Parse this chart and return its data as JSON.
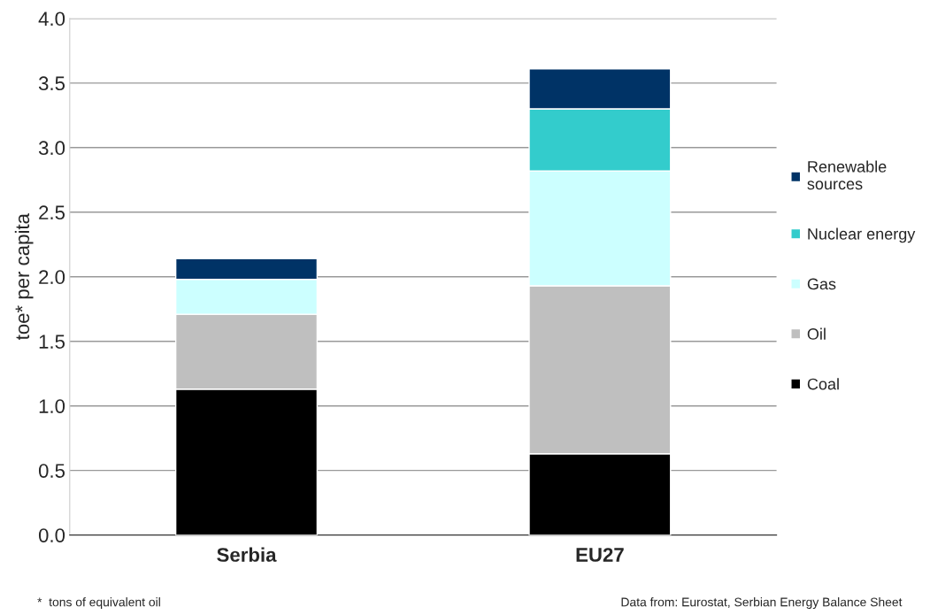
{
  "chart_data": {
    "type": "bar",
    "ylabel": "toe* per capita",
    "categories": [
      "Serbia",
      "EU27"
    ],
    "stacked": true,
    "series": [
      {
        "name": "Coal",
        "color": "#000000",
        "values": [
          1.13,
          0.63
        ]
      },
      {
        "name": "Oil",
        "color": "#bfbfbf",
        "values": [
          0.58,
          1.3
        ]
      },
      {
        "name": "Gas",
        "color": "#ccffff",
        "values": [
          0.27,
          0.89
        ]
      },
      {
        "name": "Nuclear energy",
        "color": "#33cccc",
        "values": [
          null,
          0.48
        ]
      },
      {
        "name": "Renewable\nsources",
        "color": "#003366",
        "values": [
          0.16,
          0.31
        ]
      }
    ],
    "ylim": [
      0,
      4
    ],
    "yticks": [
      {
        "value": 0,
        "label": "0.0"
      },
      {
        "value": 0.5,
        "label": "0.5"
      },
      {
        "value": 1,
        "label": "1.0"
      },
      {
        "value": 1.5,
        "label": "1.5"
      },
      {
        "value": 2,
        "label": "2.0"
      },
      {
        "value": 2.5,
        "label": "2.5"
      },
      {
        "value": 3,
        "label": "3.0"
      },
      {
        "value": 3.5,
        "label": "3.5"
      },
      {
        "value": 4,
        "label": "4.0"
      }
    ],
    "grid": "y",
    "legend": "right",
    "annotations": [
      "*  tons of equivalent oil",
      "Data from: Eurostat, Serbian Energy Balance Sheet"
    ]
  }
}
